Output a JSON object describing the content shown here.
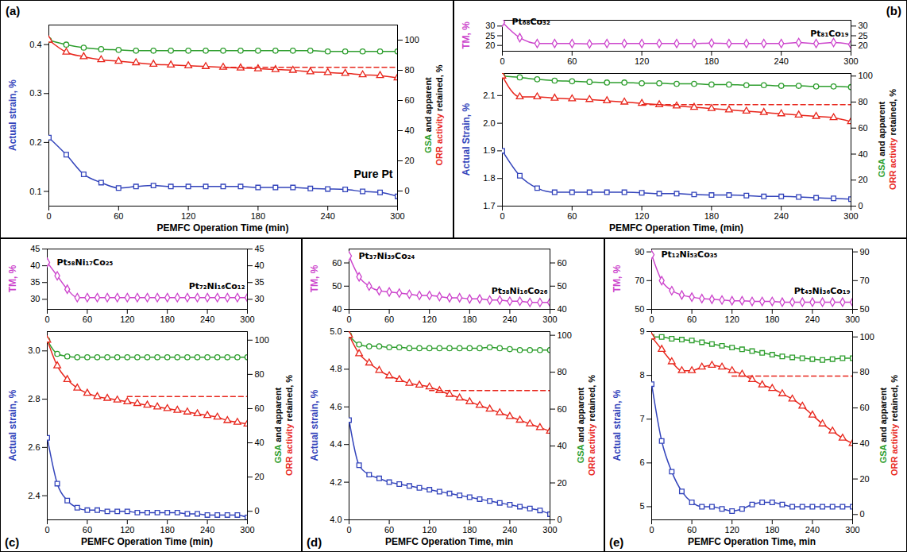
{
  "chart_data": [
    {
      "panel": "(a)",
      "type": "line",
      "x_label": "PEMFC Operation Time (min)",
      "xlim": [
        0,
        300
      ],
      "xticks": [
        0,
        60,
        120,
        180,
        240,
        300
      ],
      "x": [
        0,
        15,
        30,
        45,
        60,
        75,
        90,
        105,
        120,
        135,
        150,
        165,
        180,
        195,
        210,
        225,
        240,
        255,
        270,
        285,
        300
      ],
      "y_label": [
        {
          "text": "Actual strain, %",
          "color": "#3344bb"
        }
      ],
      "ylim": [
        0.07,
        0.44
      ],
      "yticks": [
        0.1,
        0.2,
        0.3,
        0.4
      ],
      "y2_label": [
        {
          "text": "GSA",
          "color": "#2e9e2e"
        },
        {
          "text": " and apparent",
          "color": "#000000"
        },
        {
          "text": "ORR activity",
          "color": "#e8261c"
        },
        {
          "text": " retained, %",
          "color": "#000000"
        }
      ],
      "y2lim": [
        -10,
        110
      ],
      "y2ticks": [
        0,
        20,
        40,
        60,
        80,
        100
      ],
      "annotations": [
        "Pure Pt"
      ],
      "series": [
        {
          "axis": "y",
          "color": "#3344bb",
          "marker": "square",
          "values": [
            0.21,
            0.175,
            0.135,
            0.118,
            0.107,
            0.11,
            0.112,
            0.11,
            0.11,
            0.11,
            0.11,
            0.11,
            0.108,
            0.108,
            0.108,
            0.106,
            0.105,
            0.104,
            0.1,
            0.098,
            0.09
          ]
        },
        {
          "axis": "y2",
          "color": "#2e9e2e",
          "marker": "circle",
          "values": [
            100,
            97,
            95,
            94,
            93.5,
            93,
            93,
            93,
            93,
            93,
            93,
            93,
            93,
            93,
            93,
            93,
            92.5,
            92.5,
            92.5,
            92.5,
            92.5
          ]
        },
        {
          "axis": "y2",
          "color": "#e8261c",
          "marker": "triangle",
          "values": [
            100,
            92,
            89,
            87,
            86,
            85,
            84,
            83.5,
            83,
            82.5,
            82,
            81.5,
            81,
            80.5,
            80,
            79,
            78.5,
            78,
            77,
            76.5,
            75
          ]
        },
        {
          "axis": "y2",
          "color": "#e8261c",
          "line_style": "dashed",
          "x": [
            150,
            300
          ],
          "values": [
            82,
            82
          ]
        }
      ]
    },
    {
      "panel": "(b)",
      "type": "line",
      "x_label": "PEMFC Operation Time, (min)",
      "xlim": [
        0,
        300
      ],
      "xticks": [
        0,
        60,
        120,
        180,
        240,
        300
      ],
      "x": [
        0,
        15,
        30,
        45,
        60,
        75,
        90,
        105,
        120,
        135,
        150,
        165,
        180,
        195,
        210,
        225,
        240,
        255,
        270,
        285,
        300
      ],
      "top": {
        "y_label": [
          {
            "text": "TM, %",
            "color": "#cc44cc"
          }
        ],
        "ylim": [
          17,
          33
        ],
        "yticks": [
          20,
          25,
          30
        ],
        "labels": [
          "Pt₆₈Co₃₂",
          "Pt₈₁Co₁₉"
        ],
        "series": [
          {
            "color": "#cc44cc",
            "marker": "diamond",
            "values": [
              32,
              24,
              21,
              21,
              21,
              20.8,
              21,
              21,
              21,
              21,
              21,
              21,
              21.2,
              21,
              21,
              21,
              21,
              21.5,
              21,
              21.5,
              20.5
            ]
          }
        ]
      },
      "y_label": [
        {
          "text": "Actual Strain, %",
          "color": "#3344bb"
        }
      ],
      "ylim": [
        1.7,
        2.18
      ],
      "yticks": [
        1.7,
        1.8,
        1.9,
        {
          "value": 2,
          "label": "2.0"
        },
        2.1
      ],
      "y2_label": [
        {
          "text": "GSA",
          "color": "#2e9e2e"
        },
        {
          "text": " and apparent",
          "color": "#000000"
        },
        {
          "text": "ORR activity",
          "color": "#e8261c"
        },
        {
          "text": " retained, %",
          "color": "#000000"
        }
      ],
      "y2lim": [
        0,
        102
      ],
      "y2ticks": [
        0,
        20,
        40,
        60,
        80,
        100
      ],
      "series": [
        {
          "axis": "y",
          "color": "#3344bb",
          "marker": "square",
          "values": [
            1.9,
            1.81,
            1.765,
            1.75,
            1.75,
            1.75,
            1.75,
            1.75,
            1.748,
            1.745,
            1.745,
            1.742,
            1.74,
            1.74,
            1.738,
            1.735,
            1.735,
            1.733,
            1.73,
            1.728,
            1.725
          ]
        },
        {
          "axis": "y2",
          "color": "#2e9e2e",
          "marker": "circle",
          "values": [
            100,
            99,
            97.5,
            96.5,
            96,
            95.5,
            95,
            95,
            94.5,
            94.5,
            94,
            94,
            93.5,
            93.5,
            93,
            93,
            92.5,
            92.5,
            92,
            92,
            91.5
          ]
        },
        {
          "axis": "y2",
          "color": "#e8261c",
          "marker": "triangle",
          "values": [
            100,
            84,
            84,
            83,
            82.5,
            82,
            81,
            80,
            79,
            78,
            77,
            76,
            75,
            74,
            73,
            72,
            71,
            70,
            69,
            68,
            65
          ]
        },
        {
          "axis": "y2",
          "color": "#e8261c",
          "line_style": "dashed",
          "x": [
            120,
            300
          ],
          "values": [
            78,
            78
          ]
        }
      ]
    },
    {
      "panel": "(c)",
      "type": "line",
      "x_label": "PEMFC Operation Time (min)",
      "xlim": [
        0,
        300
      ],
      "xticks": [
        0,
        60,
        120,
        180,
        240,
        300
      ],
      "x": [
        0,
        15,
        30,
        45,
        60,
        75,
        90,
        105,
        120,
        135,
        150,
        165,
        180,
        195,
        210,
        225,
        240,
        255,
        270,
        285,
        300
      ],
      "top": {
        "y_label": [
          {
            "text": "TM, %",
            "color": "#cc44cc"
          }
        ],
        "ylim": [
          27,
          45
        ],
        "yticks": [
          30,
          35,
          40,
          45
        ],
        "labels": [
          "Pt₅₈Ni₁₇Co₂₅",
          "Pt₇₂Ni₁₆Co₁₂"
        ],
        "series": [
          {
            "color": "#cc44cc",
            "marker": "diamond",
            "values": [
              41,
              37,
              33,
              30.5,
              30.5,
              30.5,
              30.5,
              30.5,
              30.5,
              30.5,
              30.5,
              30.5,
              30.5,
              30.5,
              30.5,
              30.5,
              30.5,
              30.5,
              30.5,
              30.5,
              30.5
            ]
          }
        ]
      },
      "y_label": [
        {
          "text": "Actual strain, %",
          "color": "#3344bb"
        }
      ],
      "ylim": [
        2.3,
        3.08
      ],
      "yticks": [
        2.4,
        2.6,
        2.8,
        {
          "value": 3,
          "label": "3.0"
        }
      ],
      "y2_label": [
        {
          "text": "GSA",
          "color": "#2e9e2e"
        },
        {
          "text": " and apparent",
          "color": "#000000"
        },
        {
          "text": "ORR activity",
          "color": "#e8261c"
        },
        {
          "text": " retained, %",
          "color": "#000000"
        }
      ],
      "y2lim": [
        -5,
        105
      ],
      "y2ticks": [
        0,
        20,
        40,
        60,
        80,
        100
      ],
      "series": [
        {
          "axis": "y",
          "color": "#3344bb",
          "marker": "square",
          "values": [
            2.64,
            2.45,
            2.38,
            2.35,
            2.34,
            2.34,
            2.335,
            2.335,
            2.335,
            2.33,
            2.33,
            2.33,
            2.33,
            2.33,
            2.325,
            2.325,
            2.32,
            2.32,
            2.32,
            2.32,
            2.31
          ]
        },
        {
          "axis": "y2",
          "color": "#2e9e2e",
          "marker": "circle",
          "values": [
            100,
            92,
            90.5,
            90,
            90,
            90,
            90,
            90,
            90,
            90,
            90,
            90,
            90,
            90,
            90,
            90,
            90,
            90,
            90,
            90,
            90
          ]
        },
        {
          "axis": "y2",
          "color": "#e8261c",
          "marker": "triangle",
          "values": [
            100,
            85,
            77,
            72,
            69,
            67,
            66,
            65,
            64,
            63,
            62,
            61,
            60,
            59,
            58,
            57,
            56,
            55,
            53,
            52,
            51
          ]
        },
        {
          "axis": "y2",
          "color": "#e8261c",
          "line_style": "dashed",
          "x": [
            120,
            300
          ],
          "values": [
            67,
            67
          ]
        }
      ]
    },
    {
      "panel": "(d)",
      "type": "line",
      "x_label": "PEMFC Operation Time, min",
      "xlim": [
        0,
        300
      ],
      "xticks": [
        0,
        60,
        120,
        180,
        240,
        300
      ],
      "x": [
        0,
        15,
        30,
        45,
        60,
        75,
        90,
        105,
        120,
        135,
        150,
        165,
        180,
        195,
        210,
        225,
        240,
        255,
        270,
        285,
        300
      ],
      "top": {
        "y_label": [
          {
            "text": "TM, %",
            "color": "#cc44cc"
          }
        ],
        "ylim": [
          40,
          66
        ],
        "yticks": [
          40,
          50,
          60
        ],
        "labels": [
          "Pt₃₇Ni₃₉Co₂₄",
          "Pt₅₈Ni₁₆Co₂₆"
        ],
        "series": [
          {
            "color": "#cc44cc",
            "marker": "diamond",
            "values": [
              63,
              54,
              50,
              48,
              47.5,
              47,
              46.5,
              46,
              46,
              45.5,
              45,
              45,
              44.5,
              44.5,
              44,
              44,
              43.5,
              43.5,
              43,
              43,
              43
            ]
          }
        ]
      },
      "y_label": [
        {
          "text": "Actual strain, %",
          "color": "#3344bb"
        }
      ],
      "ylim": [
        4.0,
        5.0
      ],
      "yticks": [
        {
          "value": 4,
          "label": "4.0"
        },
        4.2,
        4.4,
        4.6,
        4.8,
        {
          "value": 5,
          "label": "5.0"
        }
      ],
      "y2_label": [
        {
          "text": "GSA",
          "color": "#2e9e2e"
        },
        {
          "text": " and apparent",
          "color": "#000000"
        },
        {
          "text": "ORR activity",
          "color": "#e8261c"
        },
        {
          "text": " retained, %",
          "color": "#000000"
        }
      ],
      "y2lim": [
        0,
        102
      ],
      "y2ticks": [
        0,
        20,
        40,
        60,
        80,
        100
      ],
      "series": [
        {
          "axis": "y",
          "color": "#3344bb",
          "marker": "square",
          "values": [
            4.53,
            4.29,
            4.24,
            4.22,
            4.2,
            4.19,
            4.18,
            4.17,
            4.16,
            4.15,
            4.14,
            4.13,
            4.12,
            4.11,
            4.1,
            4.09,
            4.08,
            4.07,
            4.06,
            4.05,
            4.03
          ]
        },
        {
          "axis": "y2",
          "color": "#2e9e2e",
          "marker": "circle",
          "values": [
            100,
            95,
            94,
            94,
            93.5,
            93.5,
            93,
            93,
            93,
            93,
            93,
            93,
            93,
            93,
            93.5,
            93,
            92.5,
            92,
            92,
            92,
            92
          ]
        },
        {
          "axis": "y2",
          "color": "#e8261c",
          "marker": "triangle",
          "values": [
            100,
            90,
            85,
            81,
            78,
            76,
            74,
            73,
            72,
            70,
            68,
            66,
            64,
            62,
            60,
            58,
            56,
            54,
            52,
            50,
            48
          ]
        },
        {
          "axis": "y2",
          "color": "#e8261c",
          "line_style": "dashed",
          "x": [
            120,
            300
          ],
          "values": [
            70,
            70
          ]
        }
      ]
    },
    {
      "panel": "(e)",
      "type": "line",
      "x_label": "PEMFC Operation Time, min",
      "xlim": [
        0,
        300
      ],
      "xticks": [
        0,
        60,
        120,
        180,
        240,
        300
      ],
      "x": [
        0,
        15,
        30,
        45,
        60,
        75,
        90,
        105,
        120,
        135,
        150,
        165,
        180,
        195,
        210,
        225,
        240,
        255,
        270,
        285,
        300
      ],
      "top": {
        "y_label": [
          {
            "text": "TM, %",
            "color": "#cc44cc"
          }
        ],
        "ylim": [
          50,
          92
        ],
        "yticks": [
          50,
          70,
          90
        ],
        "labels": [
          "Pt₁₂Ni₅₃Co₃₅",
          "Pt₄₅Ni₃₆Co₁₉"
        ],
        "series": [
          {
            "color": "#cc44cc",
            "marker": "diamond",
            "values": [
              88,
              70,
              63,
              60,
              58.5,
              57.5,
              57,
              56.5,
              56,
              56,
              55.5,
              55.5,
              55.5,
              55,
              55,
              55,
              55,
              55,
              55,
              55,
              55
            ]
          }
        ]
      },
      "y_label": [
        {
          "text": "Actual strain, %",
          "color": "#3344bb"
        }
      ],
      "ylim": [
        4.7,
        9
      ],
      "yticks": [
        5,
        6,
        7,
        8,
        9
      ],
      "y2_label": [
        {
          "text": "GSA",
          "color": "#2e9e2e"
        },
        {
          "text": " and apparent",
          "color": "#000000"
        },
        {
          "text": "ORR activity",
          "color": "#e8261c"
        },
        {
          "text": " retained, %",
          "color": "#000000"
        }
      ],
      "y2lim": [
        -3,
        103
      ],
      "y2ticks": [
        0,
        20,
        40,
        60,
        80,
        100
      ],
      "series": [
        {
          "axis": "y",
          "color": "#3344bb",
          "marker": "square",
          "values": [
            7.8,
            6.5,
            5.8,
            5.35,
            5.1,
            5.0,
            5.0,
            4.95,
            4.9,
            4.95,
            5.05,
            5.1,
            5.1,
            5.05,
            5.0,
            5.0,
            5.0,
            5.0,
            5.0,
            5.0,
            5.0
          ]
        },
        {
          "axis": "y2",
          "color": "#2e9e2e",
          "marker": "square",
          "values": [
            100,
            100,
            99,
            98.5,
            98,
            97,
            96,
            95,
            94,
            93,
            92,
            91,
            90,
            89,
            88.5,
            88,
            87.5,
            87,
            87.5,
            88,
            88
          ]
        },
        {
          "axis": "y2",
          "color": "#e8261c",
          "marker": "triangle",
          "values": [
            100,
            93,
            86,
            81,
            81,
            83,
            84,
            83,
            81,
            79,
            76,
            73,
            71,
            68,
            65,
            61,
            56,
            51,
            47,
            43,
            40
          ]
        },
        {
          "axis": "y2",
          "color": "#e8261c",
          "line_style": "dashed",
          "x": [
            120,
            300
          ],
          "values": [
            78,
            78
          ]
        }
      ]
    }
  ]
}
